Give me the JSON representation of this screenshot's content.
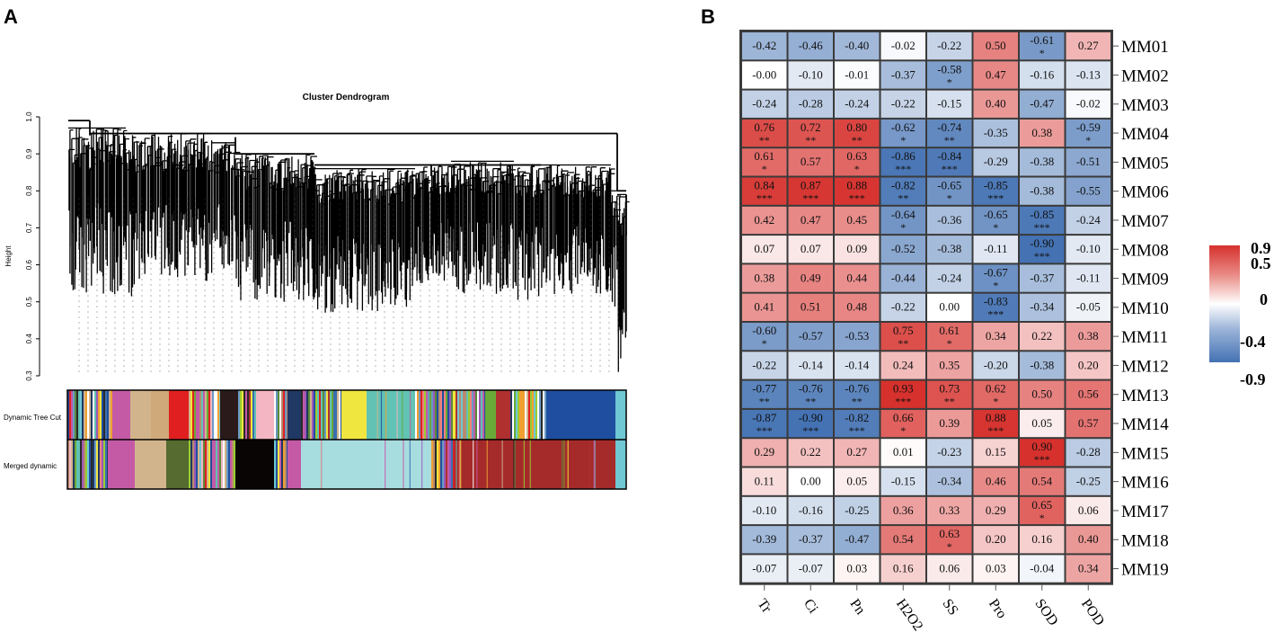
{
  "panel_a": {
    "label": "A",
    "title": "Cluster Dendrogram",
    "ylabel": "Height",
    "yticks": [
      "0.3",
      "0.4",
      "0.5",
      "0.6",
      "0.7",
      "0.8",
      "0.9",
      "1.0"
    ],
    "ylim": [
      0.3,
      1.0
    ],
    "track1_label": "Dynamic Tree Cut",
    "track2_label": "Merged dynamic"
  },
  "panel_b": {
    "label": "B",
    "legend_ticks": [
      "0.9",
      "0.5",
      "0",
      "-0.4",
      "-0.9"
    ],
    "colors": {
      "low": "#4472b3",
      "mid": "#ffffff",
      "high": "#d6312d"
    }
  },
  "chart_data": [
    {
      "type": "dendrogram",
      "title": "Cluster Dendrogram",
      "ylabel": "Height",
      "ylim": [
        0.3,
        1.0
      ],
      "color_tracks": [
        "Dynamic Tree Cut",
        "Merged dynamic"
      ]
    },
    {
      "type": "heatmap",
      "columns": [
        "Tr",
        "Ci",
        "Pn",
        "H2O2",
        "SS",
        "Pro",
        "SOD",
        "POD"
      ],
      "rows": [
        "MM01",
        "MM02",
        "MM03",
        "MM04",
        "MM05",
        "MM06",
        "MM07",
        "MM08",
        "MM09",
        "MM10",
        "MM11",
        "MM12",
        "MM13",
        "MM14",
        "MM15",
        "MM16",
        "MM17",
        "MM18",
        "MM19"
      ],
      "values": [
        [
          -0.42,
          -0.46,
          -0.4,
          -0.02,
          -0.22,
          0.5,
          -0.61,
          0.27
        ],
        [
          -0.0,
          -0.1,
          -0.01,
          -0.37,
          -0.58,
          0.47,
          -0.16,
          -0.13
        ],
        [
          -0.24,
          -0.28,
          -0.24,
          -0.22,
          -0.15,
          0.4,
          -0.47,
          -0.02
        ],
        [
          0.76,
          0.72,
          0.8,
          -0.62,
          -0.74,
          -0.35,
          0.38,
          -0.59
        ],
        [
          0.61,
          0.57,
          0.63,
          -0.86,
          -0.84,
          -0.29,
          -0.38,
          -0.51
        ],
        [
          0.84,
          0.87,
          0.88,
          -0.82,
          -0.65,
          -0.85,
          -0.38,
          -0.55
        ],
        [
          0.42,
          0.47,
          0.45,
          -0.64,
          -0.36,
          -0.65,
          -0.85,
          -0.24
        ],
        [
          0.07,
          0.07,
          0.09,
          -0.52,
          -0.38,
          -0.11,
          -0.9,
          -0.1
        ],
        [
          0.38,
          0.49,
          0.44,
          -0.44,
          -0.24,
          -0.67,
          -0.37,
          -0.11
        ],
        [
          0.41,
          0.51,
          0.48,
          -0.22,
          0.0,
          -0.83,
          -0.34,
          -0.05
        ],
        [
          -0.6,
          -0.57,
          -0.53,
          0.75,
          0.61,
          0.34,
          0.22,
          0.38
        ],
        [
          -0.22,
          -0.14,
          -0.14,
          0.24,
          0.35,
          -0.2,
          -0.38,
          0.2
        ],
        [
          -0.77,
          -0.76,
          -0.76,
          0.93,
          0.73,
          0.62,
          0.5,
          0.56
        ],
        [
          -0.87,
          -0.9,
          -0.82,
          0.66,
          0.39,
          0.88,
          0.05,
          0.57
        ],
        [
          0.29,
          0.22,
          0.27,
          0.01,
          -0.23,
          0.15,
          0.9,
          -0.28
        ],
        [
          0.11,
          0.0,
          0.05,
          -0.15,
          -0.34,
          0.46,
          0.54,
          -0.25
        ],
        [
          -0.1,
          -0.16,
          -0.25,
          0.36,
          0.33,
          0.29,
          0.65,
          0.06
        ],
        [
          -0.39,
          -0.37,
          -0.47,
          0.54,
          0.63,
          0.2,
          0.16,
          0.4
        ],
        [
          -0.07,
          -0.07,
          0.03,
          0.16,
          0.06,
          0.03,
          -0.04,
          0.34
        ]
      ],
      "labels": [
        [
          "-0.42",
          "-0.46",
          "-0.40",
          "-0.02",
          "-0.22",
          "0.50",
          "-0.61",
          "0.27"
        ],
        [
          "-0.00",
          "-0.10",
          "-0.01",
          "-0.37",
          "-0.58",
          "0.47",
          "-0.16",
          "-0.13"
        ],
        [
          "-0.24",
          "-0.28",
          "-0.24",
          "-0.22",
          "-0.15",
          "0.40",
          "-0.47",
          "-0.02"
        ],
        [
          "0.76",
          "0.72",
          "0.80",
          "-0.62",
          "-0.74",
          "-0.35",
          "0.38",
          "-0.59"
        ],
        [
          "0.61",
          "0.57",
          "0.63",
          "-0.86",
          "-0.84",
          "-0.29",
          "-0.38",
          "-0.51"
        ],
        [
          "0.84",
          "0.87",
          "0.88",
          "-0.82",
          "-0.65",
          "-0.85",
          "-0.38",
          "-0.55"
        ],
        [
          "0.42",
          "0.47",
          "0.45",
          "-0.64",
          "-0.36",
          "-0.65",
          "-0.85",
          "-0.24"
        ],
        [
          "0.07",
          "0.07",
          "0.09",
          "-0.52",
          "-0.38",
          "-0.11",
          "-0.90",
          "-0.10"
        ],
        [
          "0.38",
          "0.49",
          "0.44",
          "-0.44",
          "-0.24",
          "-0.67",
          "-0.37",
          "-0.11"
        ],
        [
          "0.41",
          "0.51",
          "0.48",
          "-0.22",
          "0.00",
          "-0.83",
          "-0.34",
          "-0.05"
        ],
        [
          "-0.60",
          "-0.57",
          "-0.53",
          "0.75",
          "0.61",
          "0.34",
          "0.22",
          "0.38"
        ],
        [
          "-0.22",
          "-0.14",
          "-0.14",
          "0.24",
          "0.35",
          "-0.20",
          "-0.38",
          "0.20"
        ],
        [
          "-0.77",
          "-0.76",
          "-0.76",
          "0.93",
          "0.73",
          "0.62",
          "0.50",
          "0.56"
        ],
        [
          "-0.87",
          "-0.90",
          "-0.82",
          "0.66",
          "0.39",
          "0.88",
          "0.05",
          "0.57"
        ],
        [
          "0.29",
          "0.22",
          "0.27",
          "0.01",
          "-0.23",
          "0.15",
          "0.90",
          "-0.28"
        ],
        [
          "0.11",
          "0.00",
          "0.05",
          "-0.15",
          "-0.34",
          "0.46",
          "0.54",
          "-0.25"
        ],
        [
          "-0.10",
          "-0.16",
          "-0.25",
          "0.36",
          "0.33",
          "0.29",
          "0.65",
          "0.06"
        ],
        [
          "-0.39",
          "-0.37",
          "-0.47",
          "0.54",
          "0.63",
          "0.20",
          "0.16",
          "0.40"
        ],
        [
          "-0.07",
          "-0.07",
          "0.03",
          "0.16",
          "0.06",
          "0.03",
          "-0.04",
          "0.34"
        ]
      ],
      "stars": [
        [
          "",
          "",
          "",
          "",
          "",
          "",
          "*",
          ""
        ],
        [
          "",
          "",
          "",
          "",
          "*",
          "",
          "",
          ""
        ],
        [
          "",
          "",
          "",
          "",
          "",
          "",
          "",
          ""
        ],
        [
          "**",
          "**",
          "**",
          "*",
          "**",
          "",
          "",
          "*"
        ],
        [
          "*",
          "",
          "*",
          "***",
          "***",
          "",
          "",
          ""
        ],
        [
          "***",
          "***",
          "***",
          "**",
          "*",
          "***",
          "",
          ""
        ],
        [
          "",
          "",
          "",
          "*",
          "",
          "*",
          "***",
          ""
        ],
        [
          "",
          "",
          "",
          "",
          "",
          "",
          "***",
          ""
        ],
        [
          "",
          "",
          "",
          "",
          "",
          "*",
          "",
          ""
        ],
        [
          "",
          "",
          "",
          "",
          "",
          "***",
          "",
          ""
        ],
        [
          "*",
          "",
          "",
          "**",
          "*",
          "",
          "",
          ""
        ],
        [
          "",
          "",
          "",
          "",
          "",
          "",
          "",
          ""
        ],
        [
          "**",
          "**",
          "**",
          "***",
          "**",
          "*",
          "",
          ""
        ],
        [
          "***",
          "***",
          "***",
          "*",
          "",
          "***",
          "",
          ""
        ],
        [
          "",
          "",
          "",
          "",
          "",
          "",
          "***",
          ""
        ],
        [
          "",
          "",
          "",
          "",
          "",
          "",
          "",
          ""
        ],
        [
          "",
          "",
          "",
          "",
          "",
          "",
          "*",
          ""
        ],
        [
          "",
          "",
          "",
          "",
          "*",
          "",
          "",
          ""
        ],
        [
          "",
          "",
          "",
          "",
          "",
          "",
          "",
          ""
        ]
      ],
      "color_scale": [
        -0.9,
        0.9
      ]
    }
  ]
}
